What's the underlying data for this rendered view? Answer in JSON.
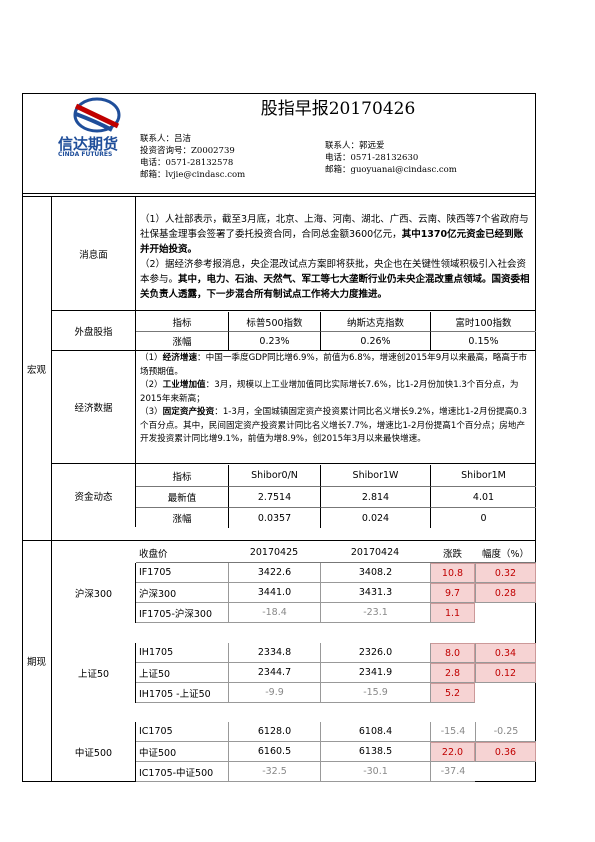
{
  "header": {
    "title": "股指早报20170426",
    "logo": {
      "name": "信达期货",
      "sub": "CINDA FUTURES"
    },
    "contacts": [
      {
        "lines": [
          "联系人：吕洁",
          "投资咨询号：Z0002739",
          "电话：0571-28132578",
          "邮箱：lvjie@cindasc.com"
        ]
      },
      {
        "lines": [
          "联系人：郭远爱",
          "电话：0571-28132630",
          "邮箱：guoyuanai@cindasc.com"
        ]
      }
    ]
  },
  "macro": {
    "label": "宏观",
    "news": {
      "label": "消息面",
      "paragraphs": [
        [
          {
            "text": "（1）人社部表示，截至3月底，北京、上海、河南、湖北、广西、云南、陕西等7个省政府与社保基金理事会签署了委托投资合同，合同总金额3600亿元，"
          },
          {
            "text": "其中1370亿元资金已经到账并开始投资。",
            "bold": true
          }
        ],
        [
          {
            "text": "（2）据经济参考报消息，央企混改试点方案即将获批，央企也在关键性领域积极引入社会资本参与。"
          },
          {
            "text": "其中，电力、石油、天然气、军工等七大垄断行业仍未央企混改重点领域。国资委相关负责人透露，下一步混合所有制试点工作将大力度推进。",
            "bold": true
          }
        ]
      ]
    },
    "overseas": {
      "label": "外盘股指",
      "header": [
        "指标",
        "标普500指数",
        "纳斯达克指数",
        "富时100指数"
      ],
      "rows": [
        [
          "涨幅",
          "0.23%",
          "0.26%",
          "0.15%"
        ]
      ]
    },
    "economy": {
      "label": "经济数据",
      "paragraphs": [
        [
          {
            "text": "（1）"
          },
          {
            "text": "经济增速",
            "bold": true
          },
          {
            "text": "：中国一季度GDP同比增6.9%，前值为6.8%，增速创2015年9月以来最高，略高于市场预期值。"
          }
        ],
        [
          {
            "text": "（2）"
          },
          {
            "text": "工业增加值",
            "bold": true
          },
          {
            "text": "：3月，规模以上工业增加值同比实际增长7.6%，比1-2月份加快1.3个百分点，为2015年来新高；"
          }
        ],
        [
          {
            "text": "（3）"
          },
          {
            "text": "固定资产投资",
            "bold": true
          },
          {
            "text": "：1-3月，全国城镇固定资产投资累计同比名义增长9.2%，增速比1-2月份提高0.3个百分点。其中，民间固定资产投资累计同比名义增长7.7%，增速比1-2月份提高1个百分点；房地产开发投资累计同比增9.1%，前值为增8.9%，创2015年3月以来最快增速。"
          }
        ]
      ]
    },
    "funds": {
      "label": "资金动态",
      "header": [
        "指标",
        "Shibor0/N",
        "Shibor1W",
        "Shibor1M"
      ],
      "rows": [
        [
          "最新值",
          "2.7514",
          "2.814",
          "4.01"
        ],
        [
          "涨幅",
          "0.0357",
          "0.024",
          "0"
        ]
      ]
    }
  },
  "futures": {
    "label": "期现",
    "header": [
      "收盘价",
      "20170425",
      "20170424",
      "涨跌",
      "幅度（%）"
    ],
    "groups": [
      {
        "label": "沪深300",
        "rows": [
          [
            "IF1705",
            "3422.6",
            "3408.2",
            "10.8",
            "0.32"
          ],
          [
            "沪深300",
            "3441.0",
            "3431.3",
            "9.7",
            "0.28"
          ],
          [
            "IF1705-沪深300",
            "-18.4",
            "-23.1",
            "1.1"
          ]
        ]
      },
      {
        "label": "上证50",
        "rows": [
          [
            "IH1705",
            "2334.8",
            "2326.0",
            "8.0",
            "0.34"
          ],
          [
            "上证50",
            "2344.7",
            "2341.9",
            "2.8",
            "0.12"
          ],
          [
            "IH1705 -上证50",
            "-9.9",
            "-15.9",
            "5.2"
          ]
        ]
      },
      {
        "label": "中证500",
        "rows": [
          [
            "IC1705",
            "6128.0",
            "6108.4",
            "-15.4",
            "-0.25"
          ],
          [
            "中证500",
            "6160.5",
            "6138.5",
            "22.0",
            "0.36"
          ],
          [
            "IC1705-中证500",
            "-32.5",
            "-30.1",
            "-37.4"
          ]
        ]
      }
    ]
  }
}
